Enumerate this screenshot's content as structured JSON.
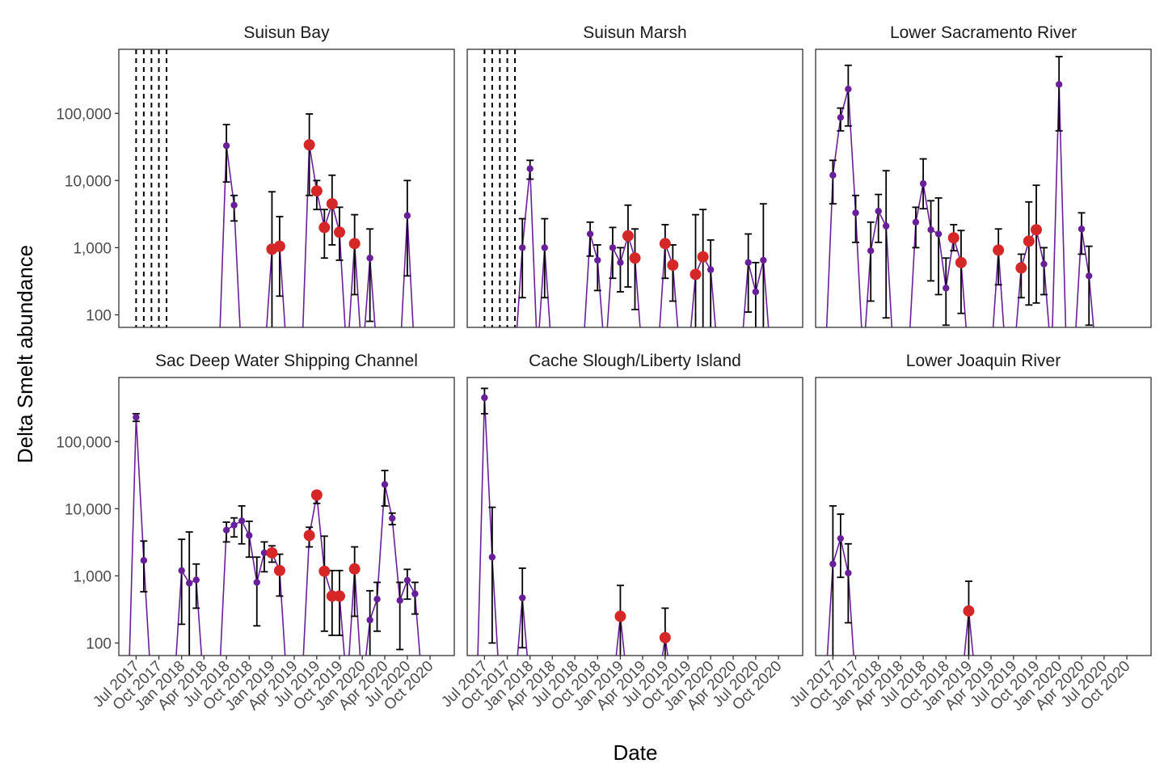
{
  "figure": {
    "ylabel": "Delta Smelt abundance",
    "xlabel": "Date"
  },
  "colors": {
    "line": "#6a1f9a",
    "small_point": "#6a1f9a",
    "large_point": "#d62728",
    "error_bar": "#000000",
    "frame": "#333333",
    "vline": "#000000"
  },
  "chart_data": {
    "type": "scatter",
    "facets": 6,
    "yscale": "log10",
    "ylim": [
      65,
      900000
    ],
    "y_ticks": [
      {
        "value": 100,
        "label": "100"
      },
      {
        "value": 1000,
        "label": "1,000"
      },
      {
        "value": 10000,
        "label": "10,000"
      },
      {
        "value": 100000,
        "label": "100,000"
      }
    ],
    "xlim": [
      "2017-05-15",
      "2020-12-15"
    ],
    "x_ticks": [
      {
        "date": "2017-07-01",
        "label": "Jul 2017"
      },
      {
        "date": "2017-10-01",
        "label": "Oct 2017"
      },
      {
        "date": "2018-01-01",
        "label": "Jan 2018"
      },
      {
        "date": "2018-04-01",
        "label": "Apr 2018"
      },
      {
        "date": "2018-07-01",
        "label": "Jul 2018"
      },
      {
        "date": "2018-10-01",
        "label": "Oct 2018"
      },
      {
        "date": "2019-01-01",
        "label": "Jan 2019"
      },
      {
        "date": "2019-04-01",
        "label": "Apr 2019"
      },
      {
        "date": "2019-07-01",
        "label": "Jul 2019"
      },
      {
        "date": "2019-10-01",
        "label": "Oct 2019"
      },
      {
        "date": "2020-01-01",
        "label": "Jan 2020"
      },
      {
        "date": "2020-04-01",
        "label": "Apr 2020"
      },
      {
        "date": "2020-07-01",
        "label": "Jul 2020"
      },
      {
        "date": "2020-10-01",
        "label": "Oct 2020"
      }
    ],
    "panels": [
      {
        "title": "Suisun Bay",
        "vlines": [
          "2017-07-01",
          "2017-08-01",
          "2017-09-01",
          "2017-10-01",
          "2017-11-01"
        ],
        "points": [
          {
            "date": "2018-07-01",
            "value": 33000,
            "lo": 9500,
            "hi": 68000,
            "size": "small"
          },
          {
            "date": "2018-08-01",
            "value": 4300,
            "lo": 2500,
            "hi": 6000,
            "size": "small"
          },
          {
            "date": "2019-01-01",
            "value": 950,
            "lo": 40,
            "hi": 6800,
            "size": "large"
          },
          {
            "date": "2019-02-01",
            "value": 1050,
            "lo": 190,
            "hi": 2900,
            "size": "large"
          },
          {
            "date": "2019-06-01",
            "value": 34000,
            "lo": 6000,
            "hi": 98000,
            "size": "large"
          },
          {
            "date": "2019-07-01",
            "value": 7000,
            "lo": 3700,
            "hi": 10000,
            "size": "large"
          },
          {
            "date": "2019-08-01",
            "value": 2000,
            "lo": 700,
            "hi": 3700,
            "size": "large"
          },
          {
            "date": "2019-09-01",
            "value": 4500,
            "lo": 1100,
            "hi": 12000,
            "size": "large"
          },
          {
            "date": "2019-10-01",
            "value": 1700,
            "lo": 650,
            "hi": 4000,
            "size": "large"
          },
          {
            "date": "2019-12-01",
            "value": 1150,
            "lo": 200,
            "hi": 3100,
            "size": "large"
          },
          {
            "date": "2020-02-01",
            "value": 700,
            "lo": 80,
            "hi": 1900,
            "size": "small"
          },
          {
            "date": "2020-07-01",
            "value": 3000,
            "lo": 380,
            "hi": 10000,
            "size": "small"
          }
        ]
      },
      {
        "title": "Suisun Marsh",
        "vlines": [
          "2017-07-01",
          "2017-08-01",
          "2017-09-01",
          "2017-10-01",
          "2017-11-01"
        ],
        "points": [
          {
            "date": "2017-12-01",
            "value": 1000,
            "lo": 180,
            "hi": 2700,
            "size": "small"
          },
          {
            "date": "2018-01-01",
            "value": 15000,
            "lo": 10500,
            "hi": 20000,
            "size": "small"
          },
          {
            "date": "2018-03-01",
            "value": 1000,
            "lo": 180,
            "hi": 2700,
            "size": "small"
          },
          {
            "date": "2018-09-01",
            "value": 1600,
            "lo": 750,
            "hi": 2400,
            "size": "small"
          },
          {
            "date": "2018-10-01",
            "value": 650,
            "lo": 230,
            "hi": 1100,
            "size": "small"
          },
          {
            "date": "2018-12-01",
            "value": 1000,
            "lo": 350,
            "hi": 2000,
            "size": "small"
          },
          {
            "date": "2019-01-01",
            "value": 600,
            "lo": 220,
            "hi": 1000,
            "size": "small"
          },
          {
            "date": "2019-02-01",
            "value": 1500,
            "lo": 260,
            "hi": 4300,
            "size": "large"
          },
          {
            "date": "2019-03-01",
            "value": 700,
            "lo": 120,
            "hi": 1900,
            "size": "large"
          },
          {
            "date": "2019-07-01",
            "value": 1150,
            "lo": 350,
            "hi": 2200,
            "size": "large"
          },
          {
            "date": "2019-08-01",
            "value": 550,
            "lo": 160,
            "hi": 1100,
            "size": "large"
          },
          {
            "date": "2019-11-01",
            "value": 400,
            "lo": 40,
            "hi": 3100,
            "size": "large"
          },
          {
            "date": "2019-12-01",
            "value": 730,
            "lo": 40,
            "hi": 3700,
            "size": "large"
          },
          {
            "date": "2020-01-01",
            "value": 470,
            "lo": 40,
            "hi": 1300,
            "size": "small"
          },
          {
            "date": "2020-06-01",
            "value": 600,
            "lo": 110,
            "hi": 1600,
            "size": "small"
          },
          {
            "date": "2020-07-01",
            "value": 220,
            "lo": 40,
            "hi": 600,
            "size": "small"
          },
          {
            "date": "2020-08-01",
            "value": 650,
            "lo": 40,
            "hi": 4500,
            "size": "small"
          }
        ]
      },
      {
        "title": "Lower Sacramento River",
        "vlines": [],
        "points": [
          {
            "date": "2017-07-01",
            "value": 12000,
            "lo": 4500,
            "hi": 20000,
            "size": "small"
          },
          {
            "date": "2017-08-01",
            "value": 87000,
            "lo": 55000,
            "hi": 120000,
            "size": "small"
          },
          {
            "date": "2017-09-01",
            "value": 230000,
            "lo": 65000,
            "hi": 520000,
            "size": "small"
          },
          {
            "date": "2017-10-01",
            "value": 3300,
            "lo": 1200,
            "hi": 6000,
            "size": "small"
          },
          {
            "date": "2017-12-01",
            "value": 900,
            "lo": 160,
            "hi": 2400,
            "size": "small"
          },
          {
            "date": "2018-01-01",
            "value": 3500,
            "lo": 1200,
            "hi": 6200,
            "size": "small"
          },
          {
            "date": "2018-02-01",
            "value": 2100,
            "lo": 90,
            "hi": 14000,
            "size": "small"
          },
          {
            "date": "2018-06-01",
            "value": 2400,
            "lo": 1000,
            "hi": 4000,
            "size": "small"
          },
          {
            "date": "2018-07-01",
            "value": 9000,
            "lo": 3800,
            "hi": 21000,
            "size": "small"
          },
          {
            "date": "2018-08-01",
            "value": 1850,
            "lo": 320,
            "hi": 5000,
            "size": "small"
          },
          {
            "date": "2018-09-01",
            "value": 1600,
            "lo": 200,
            "hi": 5500,
            "size": "small"
          },
          {
            "date": "2018-10-01",
            "value": 250,
            "lo": 70,
            "hi": 700,
            "size": "small"
          },
          {
            "date": "2018-11-01",
            "value": 1400,
            "lo": 900,
            "hi": 2200,
            "size": "large"
          },
          {
            "date": "2018-12-01",
            "value": 600,
            "lo": 105,
            "hi": 1800,
            "size": "large"
          },
          {
            "date": "2019-05-01",
            "value": 920,
            "lo": 280,
            "hi": 1900,
            "size": "large"
          },
          {
            "date": "2019-08-01",
            "value": 500,
            "lo": 180,
            "hi": 800,
            "size": "large"
          },
          {
            "date": "2019-09-01",
            "value": 1250,
            "lo": 140,
            "hi": 4800,
            "size": "large"
          },
          {
            "date": "2019-10-01",
            "value": 1850,
            "lo": 150,
            "hi": 8500,
            "size": "large"
          },
          {
            "date": "2019-11-01",
            "value": 570,
            "lo": 200,
            "hi": 1000,
            "size": "small"
          },
          {
            "date": "2020-01-01",
            "value": 270000,
            "lo": 55000,
            "hi": 700000,
            "size": "small"
          },
          {
            "date": "2020-04-01",
            "value": 1900,
            "lo": 800,
            "hi": 3300,
            "size": "small"
          },
          {
            "date": "2020-05-01",
            "value": 380,
            "lo": 70,
            "hi": 1050,
            "size": "small"
          }
        ]
      },
      {
        "title": "Sac Deep Water Shipping Channel",
        "vlines": [],
        "points": [
          {
            "date": "2017-07-01",
            "value": 230000,
            "lo": 200000,
            "hi": 260000,
            "size": "small"
          },
          {
            "date": "2017-08-01",
            "value": 1700,
            "lo": 580,
            "hi": 3300,
            "size": "small"
          },
          {
            "date": "2018-01-01",
            "value": 1200,
            "lo": 190,
            "hi": 3500,
            "size": "small"
          },
          {
            "date": "2018-02-01",
            "value": 780,
            "lo": 40,
            "hi": 4500,
            "size": "small"
          },
          {
            "date": "2018-03-01",
            "value": 870,
            "lo": 330,
            "hi": 1500,
            "size": "small"
          },
          {
            "date": "2018-07-01",
            "value": 4800,
            "lo": 3200,
            "hi": 6300,
            "size": "small"
          },
          {
            "date": "2018-08-01",
            "value": 5700,
            "lo": 3800,
            "hi": 7300,
            "size": "small"
          },
          {
            "date": "2018-09-01",
            "value": 6600,
            "lo": 3000,
            "hi": 11000,
            "size": "small"
          },
          {
            "date": "2018-10-01",
            "value": 4000,
            "lo": 1900,
            "hi": 6500,
            "size": "small"
          },
          {
            "date": "2018-11-01",
            "value": 800,
            "lo": 180,
            "hi": 1900,
            "size": "small"
          },
          {
            "date": "2018-12-01",
            "value": 2200,
            "lo": 1150,
            "hi": 3200,
            "size": "small"
          },
          {
            "date": "2019-01-01",
            "value": 2200,
            "lo": 1600,
            "hi": 2800,
            "size": "large"
          },
          {
            "date": "2019-02-01",
            "value": 1200,
            "lo": 500,
            "hi": 2100,
            "size": "large"
          },
          {
            "date": "2019-06-01",
            "value": 4000,
            "lo": 2700,
            "hi": 5300,
            "size": "large"
          },
          {
            "date": "2019-07-01",
            "value": 16000,
            "lo": 12000,
            "hi": 18000,
            "size": "large"
          },
          {
            "date": "2019-08-01",
            "value": 1170,
            "lo": 150,
            "hi": 3900,
            "size": "large"
          },
          {
            "date": "2019-09-01",
            "value": 500,
            "lo": 130,
            "hi": 1200,
            "size": "large"
          },
          {
            "date": "2019-10-01",
            "value": 500,
            "lo": 130,
            "hi": 1200,
            "size": "large"
          },
          {
            "date": "2019-12-01",
            "value": 1270,
            "lo": 250,
            "hi": 2700,
            "size": "large"
          },
          {
            "date": "2020-02-01",
            "value": 220,
            "lo": 40,
            "hi": 600,
            "size": "small"
          },
          {
            "date": "2020-03-01",
            "value": 450,
            "lo": 150,
            "hi": 800,
            "size": "small"
          },
          {
            "date": "2020-04-01",
            "value": 23000,
            "lo": 11000,
            "hi": 37000,
            "size": "small"
          },
          {
            "date": "2020-05-01",
            "value": 7200,
            "lo": 5800,
            "hi": 8600,
            "size": "small"
          },
          {
            "date": "2020-06-01",
            "value": 430,
            "lo": 80,
            "hi": 800,
            "size": "small"
          },
          {
            "date": "2020-07-01",
            "value": 860,
            "lo": 450,
            "hi": 1250,
            "size": "small"
          },
          {
            "date": "2020-08-01",
            "value": 540,
            "lo": 270,
            "hi": 800,
            "size": "small"
          }
        ]
      },
      {
        "title": "Cache Slough/Liberty Island",
        "vlines": [],
        "points": [
          {
            "date": "2017-07-01",
            "value": 450000,
            "lo": 260000,
            "hi": 620000,
            "size": "small"
          },
          {
            "date": "2017-08-01",
            "value": 1900,
            "lo": 100,
            "hi": 10500,
            "size": "small"
          },
          {
            "date": "2017-12-01",
            "value": 470,
            "lo": 85,
            "hi": 1300,
            "size": "small"
          },
          {
            "date": "2019-01-01",
            "value": 250,
            "lo": 40,
            "hi": 720,
            "size": "large"
          },
          {
            "date": "2019-07-01",
            "value": 120,
            "lo": 40,
            "hi": 330,
            "size": "large"
          }
        ]
      },
      {
        "title": "Lower Joaquin River",
        "vlines": [],
        "points": [
          {
            "date": "2017-07-01",
            "value": 1500,
            "lo": 40,
            "hi": 11000,
            "size": "small"
          },
          {
            "date": "2017-08-01",
            "value": 3600,
            "lo": 950,
            "hi": 8300,
            "size": "small"
          },
          {
            "date": "2017-09-01",
            "value": 1100,
            "lo": 200,
            "hi": 3000,
            "size": "small"
          },
          {
            "date": "2019-01-01",
            "value": 300,
            "lo": 40,
            "hi": 830,
            "size": "large"
          }
        ]
      }
    ]
  }
}
